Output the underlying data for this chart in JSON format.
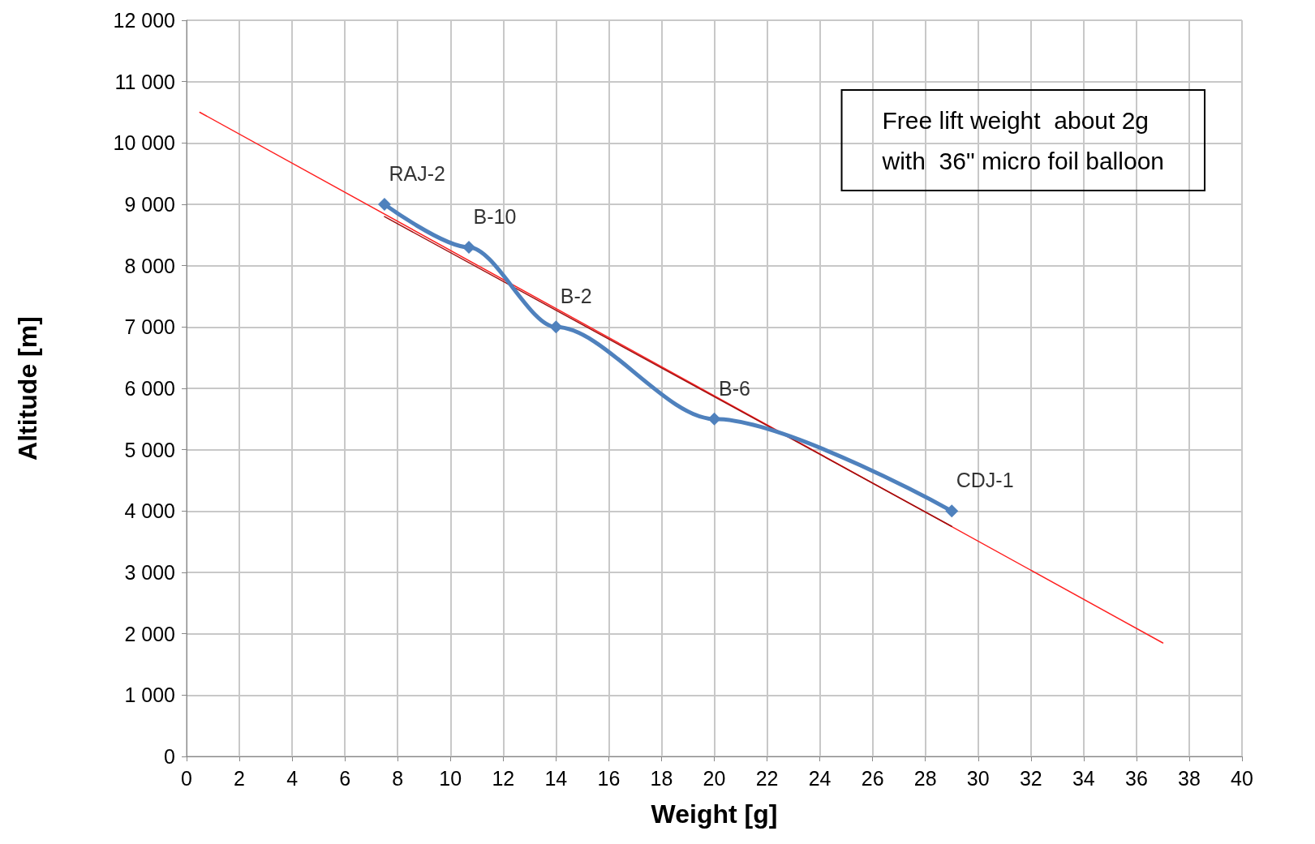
{
  "chart_data": {
    "type": "line",
    "xlabel": "Weight [g]",
    "ylabel": "Altitude [m]",
    "xlim": [
      0,
      40
    ],
    "xticks": [
      0,
      2,
      4,
      6,
      8,
      10,
      12,
      14,
      16,
      18,
      20,
      22,
      24,
      26,
      28,
      30,
      32,
      34,
      36,
      38,
      40
    ],
    "ylim": [
      0,
      12000
    ],
    "yticks": [
      0,
      {
        "value": 1000,
        "label": "1 000"
      },
      {
        "value": 2000,
        "label": "2 000"
      },
      {
        "value": 3000,
        "label": "3 000"
      },
      {
        "value": 4000,
        "label": "4 000"
      },
      {
        "value": 5000,
        "label": "5 000"
      },
      {
        "value": 6000,
        "label": "6 000"
      },
      {
        "value": 7000,
        "label": "7 000"
      },
      {
        "value": 8000,
        "label": "8 000"
      },
      {
        "value": 9000,
        "label": "9 000"
      },
      {
        "value": 10000,
        "label": "10 000"
      },
      {
        "value": 11000,
        "label": "11 000"
      },
      {
        "value": 12000,
        "label": "12 000"
      }
    ],
    "grid": true,
    "series": [
      {
        "color": "#ff2020",
        "x": [
          0.5,
          37
        ],
        "values": [
          10500,
          1850
        ],
        "marker": "none",
        "line_style": "solid"
      },
      {
        "color": "#a01010",
        "x": [
          7.5,
          29
        ],
        "values": [
          8800,
          3750
        ],
        "marker": "none",
        "line_style": "solid"
      },
      {
        "color": "#4f81bd",
        "x": [
          7.5,
          10.7,
          14,
          20,
          29
        ],
        "values": [
          9000,
          8300,
          7000,
          5500,
          4000
        ],
        "marker": "diamond",
        "line_style": "solid"
      }
    ],
    "annotations": [
      {
        "text": "RAJ-2",
        "x": 7.5,
        "y": 9000
      },
      {
        "text": "B-10",
        "x": 10.7,
        "y": 8300
      },
      {
        "text": "B-2",
        "x": 14,
        "y": 7000
      },
      {
        "text": "B-6",
        "x": 20,
        "y": 5500
      },
      {
        "text": "CDJ-1",
        "x": 29,
        "y": 4000
      },
      "Free lift weight  about 2g\nwith  36\" micro foil balloon"
    ]
  }
}
